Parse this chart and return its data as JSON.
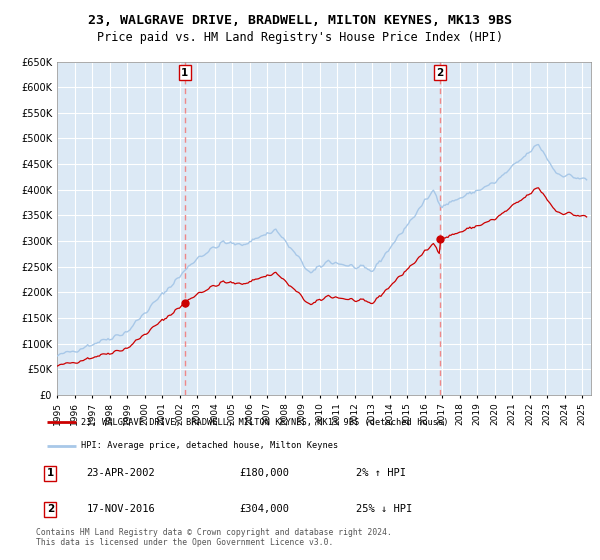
{
  "title": "23, WALGRAVE DRIVE, BRADWELL, MILTON KEYNES, MK13 9BS",
  "subtitle": "Price paid vs. HM Land Registry's House Price Index (HPI)",
  "ylim": [
    0,
    650000
  ],
  "yticks": [
    0,
    50000,
    100000,
    150000,
    200000,
    250000,
    300000,
    350000,
    400000,
    450000,
    500000,
    550000,
    600000,
    650000
  ],
  "xlim_start": 1995.0,
  "xlim_end": 2025.5,
  "xticks": [
    1995,
    1996,
    1997,
    1998,
    1999,
    2000,
    2001,
    2002,
    2003,
    2004,
    2005,
    2006,
    2007,
    2008,
    2009,
    2010,
    2011,
    2012,
    2013,
    2014,
    2015,
    2016,
    2017,
    2018,
    2019,
    2020,
    2021,
    2022,
    2023,
    2024,
    2025
  ],
  "hpi_line_color": "#a8c8e8",
  "sale_line_color": "#cc0000",
  "vline_color": "#ee8888",
  "plot_bg": "#dce9f5",
  "grid_color": "#ffffff",
  "sale1_x": 2002.3,
  "sale1_y": 180000,
  "sale2_x": 2016.88,
  "sale2_y": 304000,
  "legend_label1": "23, WALGRAVE DRIVE, BRADWELL, MILTON KEYNES, MK13 9BS (detached house)",
  "legend_label2": "HPI: Average price, detached house, Milton Keynes",
  "annotation1_date": "23-APR-2002",
  "annotation1_price": "£180,000",
  "annotation1_hpi": "2% ↑ HPI",
  "annotation2_date": "17-NOV-2016",
  "annotation2_price": "£304,000",
  "annotation2_hpi": "25% ↓ HPI",
  "footer": "Contains HM Land Registry data © Crown copyright and database right 2024.\nThis data is licensed under the Open Government Licence v3.0.",
  "title_fontsize": 9.5,
  "subtitle_fontsize": 8.5
}
